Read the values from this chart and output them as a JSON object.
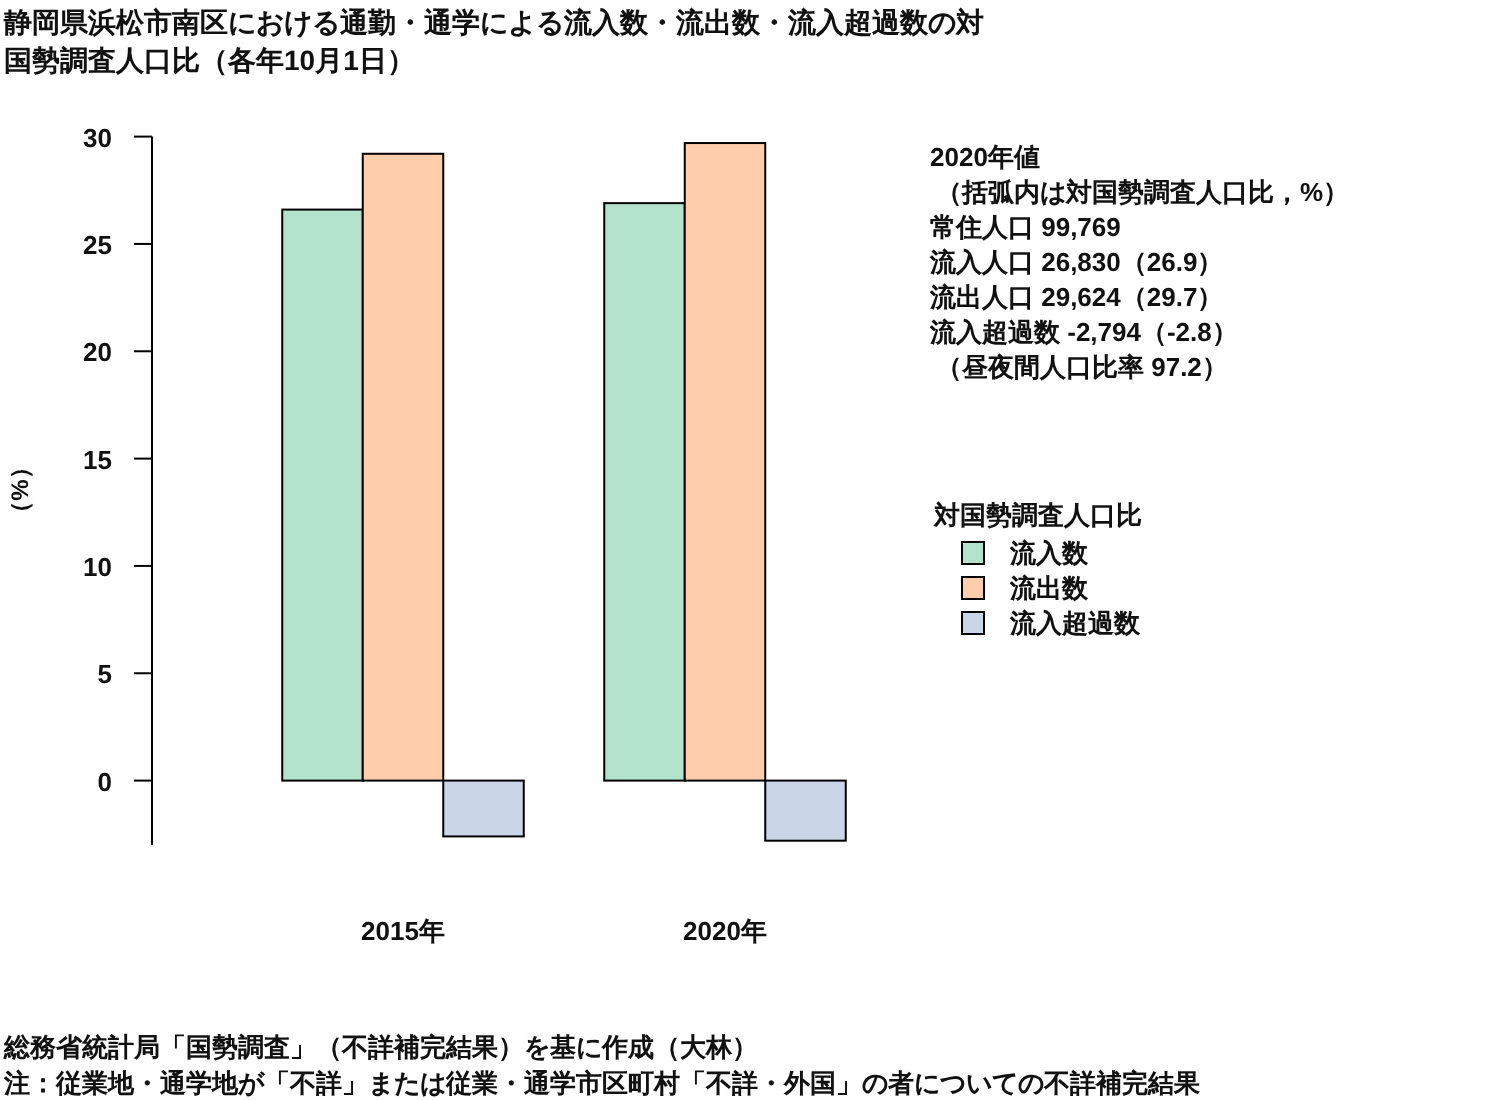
{
  "chart_data": {
    "type": "bar",
    "title": "静岡県浜松市南区における通勤・通学による流入数・流出数・流入超過数の対国勢調査人口比（各年10月1日）",
    "ylabel": "（%）",
    "legend_title": "対国勢調査人口比",
    "legend": "right",
    "categories": [
      "2015年",
      "2020年"
    ],
    "series": [
      {
        "name": "流入数",
        "color": "#b3e2cd",
        "values": [
          26.6,
          26.9
        ]
      },
      {
        "name": "流出数",
        "color": "#fdcdac",
        "values": [
          29.2,
          29.7
        ]
      },
      {
        "name": "流入超過数",
        "color": "#cbd5e8",
        "values": [
          -2.6,
          -2.8
        ]
      }
    ],
    "ylim": [
      -3,
      30
    ],
    "yticks": [
      0,
      5,
      10,
      15,
      20,
      25,
      30
    ],
    "annotations": [
      "2020年値",
      "（括弧内は対国勢調査人口比，%）",
      "常住人口 99,769",
      "流入人口 26,830（26.9）",
      "流出人口 29,624（29.7）",
      "流入超過数 -2,794（-2.8）",
      "（昼夜間人口比率 97.2）",
      "総務省統計局「国勢調査」（不詳補完結果）を基に作成（大林）",
      "注：従業地・通学地が「不詳」または従業・通学市区町村「不詳・外国」の者についての不詳補完結果"
    ]
  }
}
